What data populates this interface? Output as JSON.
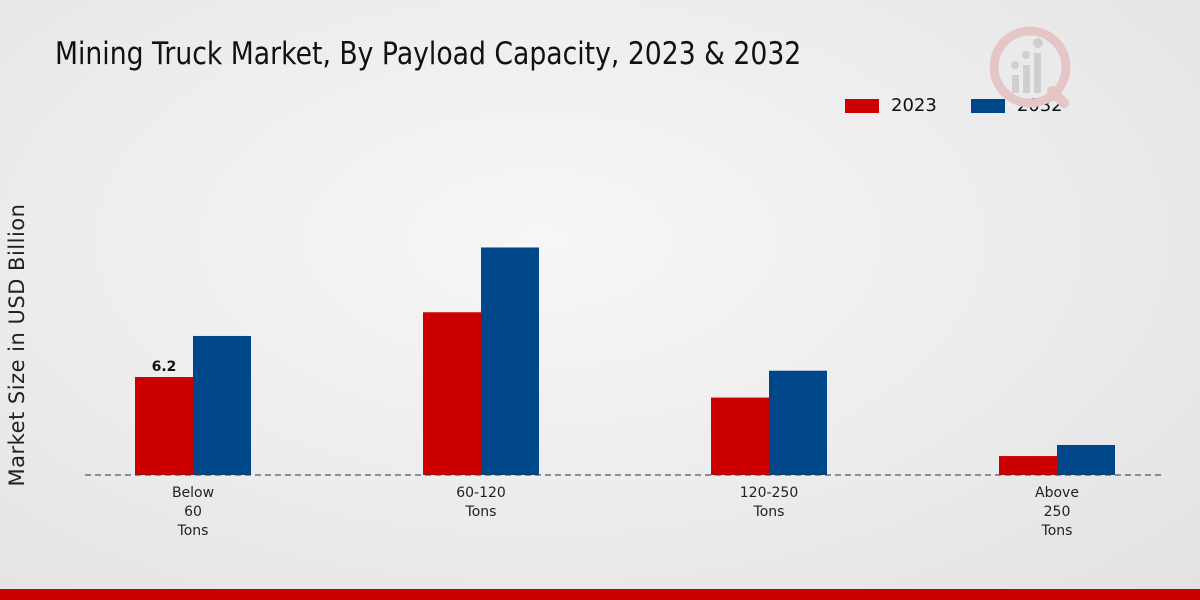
{
  "chart_data": {
    "type": "bar",
    "title": "Mining Truck Market, By Payload Capacity, 2023 & 2032",
    "xlabel": "",
    "ylabel": "Market Size in USD Billion",
    "categories": [
      "Below 60 Tons",
      "60-120 Tons",
      "120-250 Tons",
      "Above 250 Tons"
    ],
    "category_lines": [
      [
        "Below",
        "60",
        "Tons"
      ],
      [
        "60-120",
        "Tons"
      ],
      [
        "120-250",
        "Tons"
      ],
      [
        "Above",
        "250",
        "Tons"
      ]
    ],
    "series": [
      {
        "name": "2023",
        "color": "#cc0000",
        "values": [
          6.2,
          10.3,
          4.9,
          1.2
        ]
      },
      {
        "name": "2032",
        "color": "#00478a",
        "values": [
          8.8,
          14.4,
          6.6,
          1.9
        ]
      }
    ],
    "data_labels": [
      {
        "series": 0,
        "category": 0,
        "text": "6.2"
      }
    ],
    "ylim": [
      0,
      25
    ],
    "legend_position": "top-right",
    "grid": false
  }
}
